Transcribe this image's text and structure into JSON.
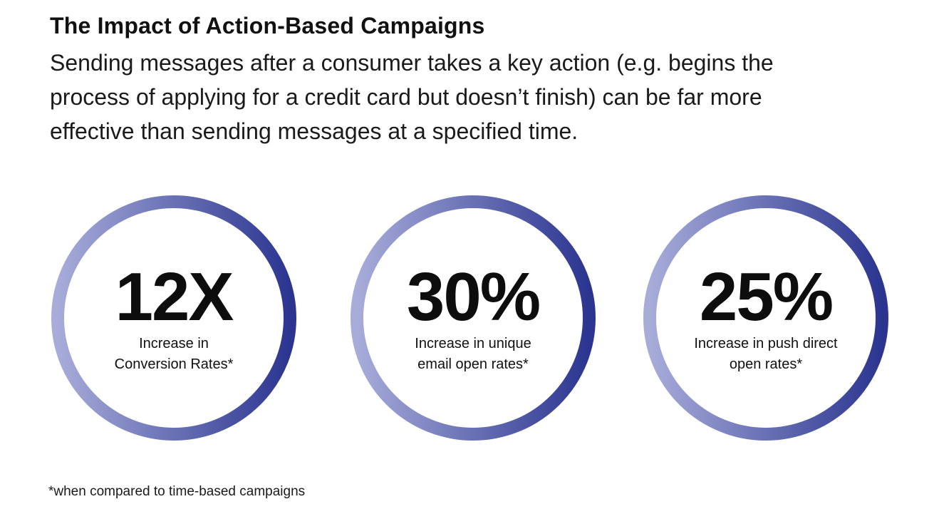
{
  "header": {
    "title": "The Impact of Action-Based Campaigns",
    "subtitle": "Sending messages after a consumer takes a key action (e.g. begins the process of applying for a credit card but doesn’t finish) can be far more effective than sending messages at a specified time."
  },
  "stats": [
    {
      "value": "12X",
      "label_line1": "Increase in",
      "label_line2": "Conversion Rates*"
    },
    {
      "value": "30%",
      "label_line1": "Increase in unique",
      "label_line2": "email open rates*"
    },
    {
      "value": "25%",
      "label_line1": "Increase in push direct",
      "label_line2": "open rates*"
    }
  ],
  "colors": {
    "ring_light": "#a7acd9",
    "ring_dark": "#2b3590"
  },
  "footnote": "*when compared to time-based campaigns"
}
